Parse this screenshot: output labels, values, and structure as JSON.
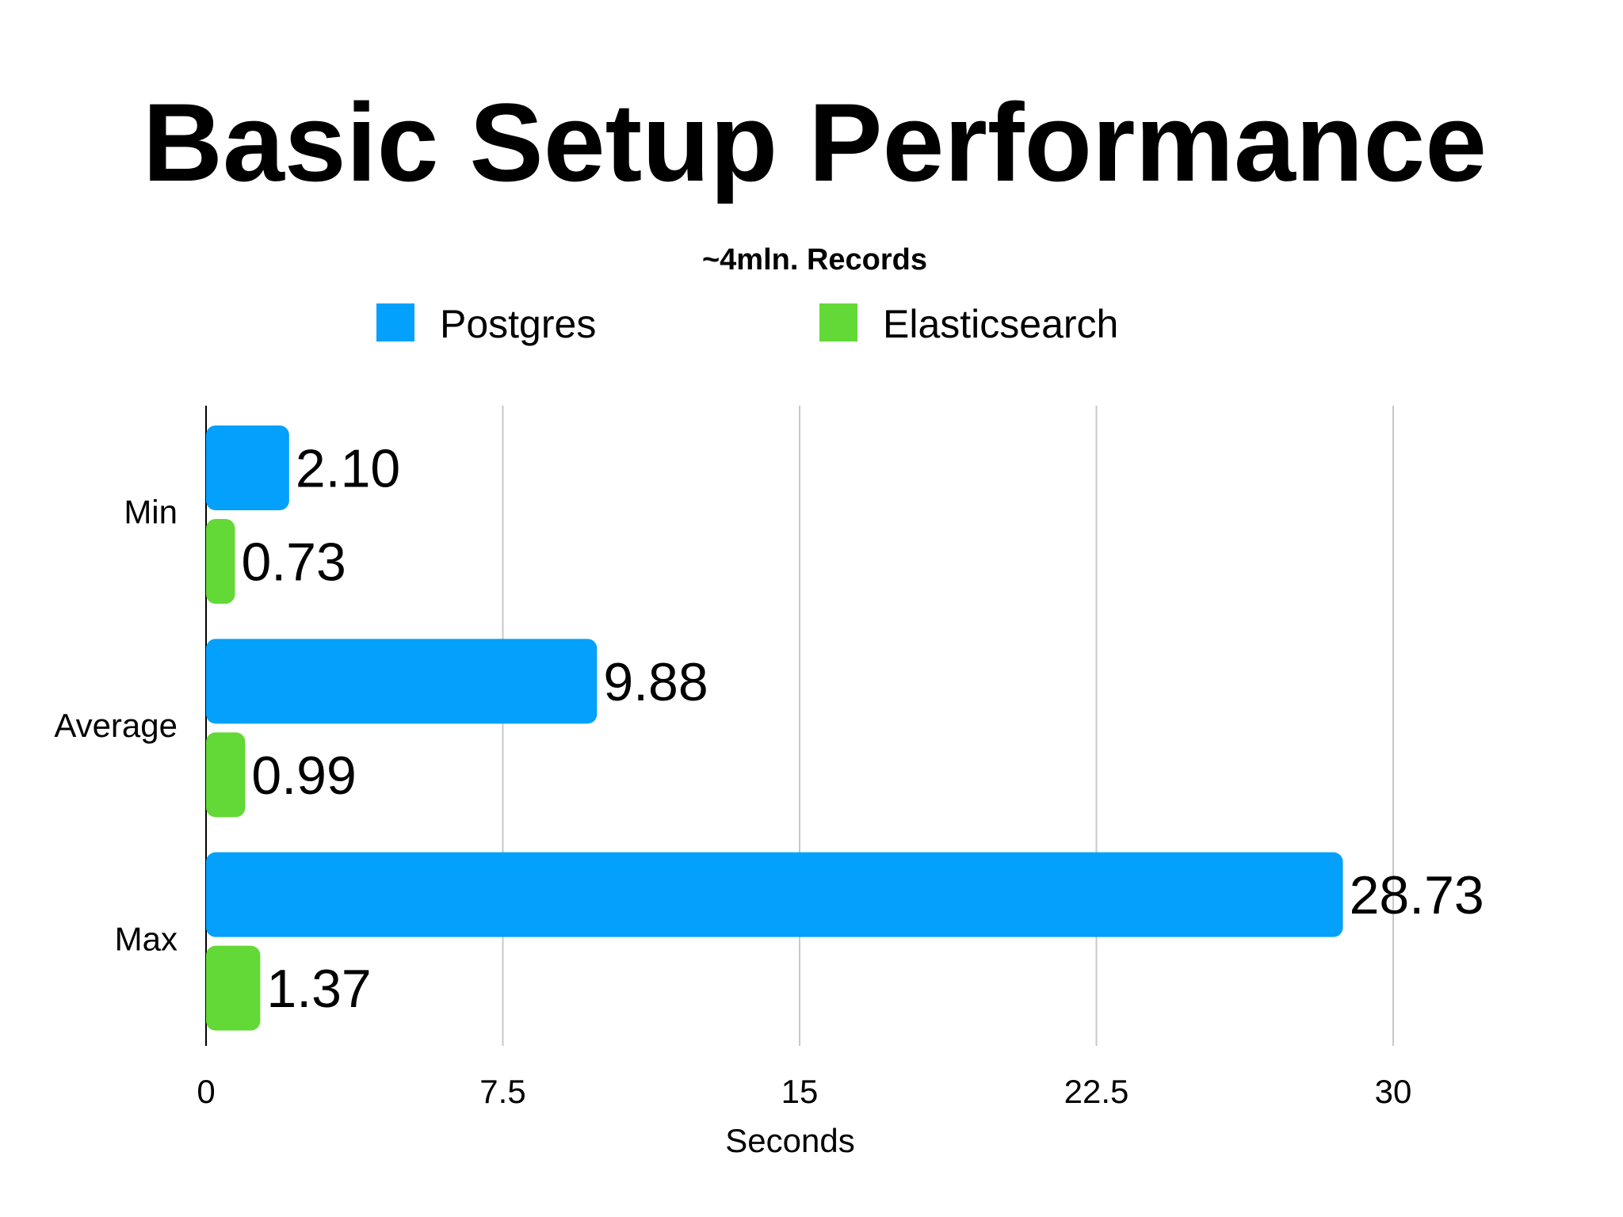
{
  "chart_data": {
    "type": "bar",
    "orientation": "horizontal",
    "title": "Basic Setup Performance",
    "subtitle": "~4mln. Records",
    "xlabel": "Seconds",
    "ylabel": "",
    "categories": [
      "Min",
      "Average",
      "Max"
    ],
    "series": [
      {
        "name": "Postgres",
        "color": "#03A1FC",
        "values": [
          2.1,
          9.88,
          28.73
        ],
        "labels": [
          "2.10",
          "9.88",
          "28.73"
        ]
      },
      {
        "name": "Elasticsearch",
        "color": "#62D936",
        "values": [
          0.73,
          0.99,
          1.37
        ],
        "labels": [
          "0.73",
          "0.99",
          "1.37"
        ]
      }
    ],
    "xlim": [
      0,
      30
    ],
    "xticks": [
      0,
      7.5,
      15,
      22.5,
      30
    ],
    "xtick_labels": [
      "0",
      "7.5",
      "15",
      "22.5",
      "30"
    ],
    "grid": true,
    "legend_position": "top-center"
  }
}
